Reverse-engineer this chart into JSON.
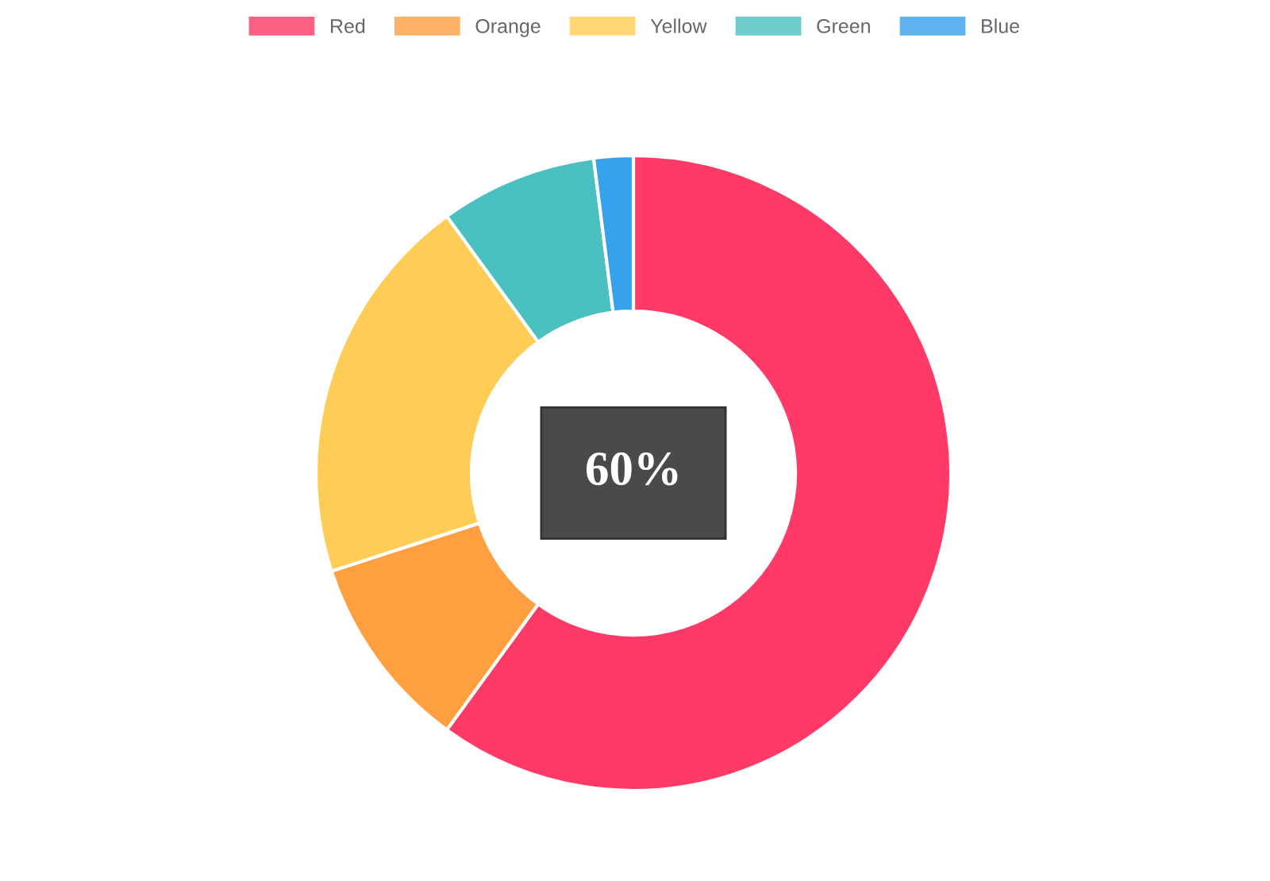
{
  "chart_data": {
    "type": "donut",
    "categories": [
      "Red",
      "Orange",
      "Yellow",
      "Green",
      "Blue"
    ],
    "values": [
      60,
      10,
      20,
      8,
      2
    ],
    "colors": [
      "#ff3a67",
      "#ff9f40",
      "#ffcd56",
      "#4bc0c0",
      "#36a2eb"
    ],
    "annotations": [
      "60%"
    ],
    "legend": "top"
  }
}
